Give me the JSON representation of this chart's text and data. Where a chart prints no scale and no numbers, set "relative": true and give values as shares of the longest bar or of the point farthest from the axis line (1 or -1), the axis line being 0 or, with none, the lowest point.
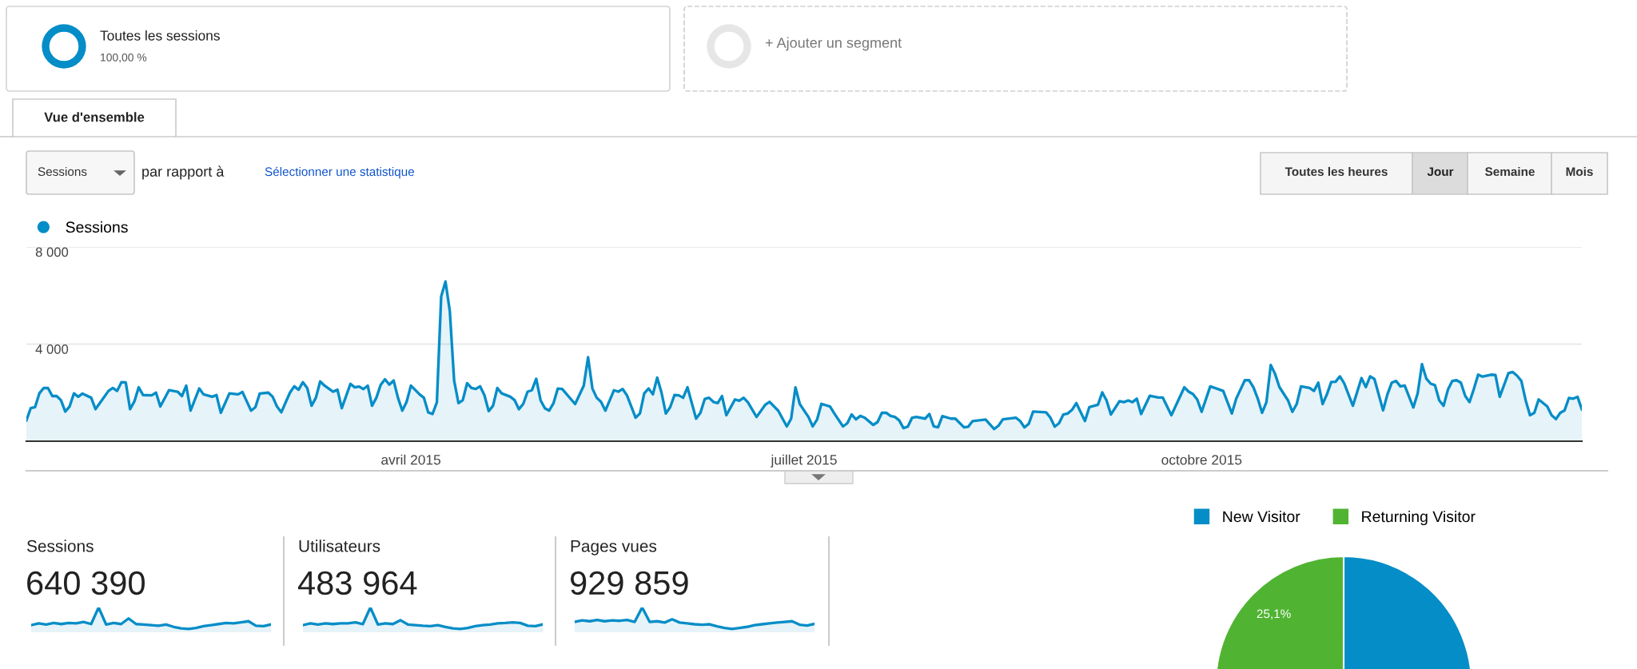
{
  "chart_data": [
    {
      "type": "other",
      "annotations": [
        "Toutes les sessions",
        "100,00 %",
        "+ Ajouter un segment"
      ]
    },
    {
      "type": "other",
      "annotations": [
        "Vue d'ensemble",
        "Sessions",
        "par rapport à",
        "Sélectionner une statistique",
        "Toutes les heures",
        "Jour",
        "Semaine",
        "Mois"
      ]
    },
    {
      "type": "area",
      "legend": "top left",
      "grid": "y",
      "xlim": [
        "2015-01-02",
        "2015-12-28"
      ],
      "xticks": [
        {
          "value": "2015-04-01",
          "label": "avril 2015"
        },
        {
          "value": "2015-07-01",
          "label": "juillet 2015"
        },
        {
          "value": "2015-10-01",
          "label": "octobre 2015"
        }
      ],
      "ylim": [
        0,
        8000
      ],
      "yticks": [
        {
          "value": 4000,
          "label": "4 000"
        },
        {
          "value": 8000,
          "label": "8 000"
        }
      ],
      "x": [
        "2015-01-02",
        "2015-01-03",
        "2015-01-04",
        "2015-01-05",
        "2015-01-06",
        "2015-01-07",
        "2015-01-08",
        "2015-01-09",
        "2015-01-10",
        "2015-01-11",
        "2015-01-12",
        "2015-01-13",
        "2015-01-14",
        "2015-01-15",
        "2015-01-17",
        "2015-01-18",
        "2015-01-19",
        "2015-01-21",
        "2015-01-22",
        "2015-01-23",
        "2015-01-24",
        "2015-01-25",
        "2015-01-26",
        "2015-01-27",
        "2015-01-28",
        "2015-01-29",
        "2015-01-31",
        "2015-02-01",
        "2015-02-02",
        "2015-02-04",
        "2015-02-06",
        "2015-02-07",
        "2015-02-08",
        "2015-02-09",
        "2015-02-11",
        "2015-02-12",
        "2015-02-14",
        "2015-02-15",
        "2015-02-16",
        "2015-02-18",
        "2015-02-20",
        "2015-02-21",
        "2015-02-23",
        "2015-02-24",
        "2015-02-25",
        "2015-02-27",
        "2015-02-28",
        "2015-03-01",
        "2015-03-02",
        "2015-03-04",
        "2015-03-05",
        "2015-03-06",
        "2015-03-07",
        "2015-03-08",
        "2015-03-09",
        "2015-03-10",
        "2015-03-11",
        "2015-03-12",
        "2015-03-14",
        "2015-03-15",
        "2015-03-16",
        "2015-03-18",
        "2015-03-19",
        "2015-03-20",
        "2015-03-21",
        "2015-03-22",
        "2015-03-23",
        "2015-03-24",
        "2015-03-25",
        "2015-03-26",
        "2015-03-27",
        "2015-03-28",
        "2015-03-29",
        "2015-03-30",
        "2015-03-31",
        "2015-04-01",
        "2015-04-03",
        "2015-04-04",
        "2015-04-05",
        "2015-04-06",
        "2015-04-07",
        "2015-04-08",
        "2015-04-09",
        "2015-04-10",
        "2015-04-11",
        "2015-04-12",
        "2015-04-13",
        "2015-04-14",
        "2015-04-15",
        "2015-04-16",
        "2015-04-17",
        "2015-04-18",
        "2015-04-19",
        "2015-04-20",
        "2015-04-21",
        "2015-04-22",
        "2015-04-24",
        "2015-04-25",
        "2015-04-26",
        "2015-04-27",
        "2015-04-28",
        "2015-04-29",
        "2015-04-30",
        "2015-05-01",
        "2015-05-02",
        "2015-05-03",
        "2015-05-04",
        "2015-05-05",
        "2015-05-06",
        "2015-05-09",
        "2015-05-11",
        "2015-05-12",
        "2015-05-13",
        "2015-05-14",
        "2015-05-15",
        "2015-05-16",
        "2015-05-18",
        "2015-05-19",
        "2015-05-20",
        "2015-05-21",
        "2015-05-23",
        "2015-05-24",
        "2015-05-25",
        "2015-05-26",
        "2015-05-27",
        "2015-05-28",
        "2015-05-29",
        "2015-05-30",
        "2015-05-31",
        "2015-06-01",
        "2015-06-02",
        "2015-06-03",
        "2015-06-04",
        "2015-06-06",
        "2015-06-07",
        "2015-06-08",
        "2015-06-09",
        "2015-06-10",
        "2015-06-11",
        "2015-06-12",
        "2015-06-13",
        "2015-06-15",
        "2015-06-16",
        "2015-06-17",
        "2015-06-18",
        "2015-06-20",
        "2015-06-22",
        "2015-06-23",
        "2015-06-25",
        "2015-06-27",
        "2015-06-28",
        "2015-06-29",
        "2015-06-30",
        "2015-07-02",
        "2015-07-03",
        "2015-07-04",
        "2015-07-05",
        "2015-07-07",
        "2015-07-08",
        "2015-07-10",
        "2015-07-11",
        "2015-07-12",
        "2015-07-13",
        "2015-07-14",
        "2015-07-15",
        "2015-07-17",
        "2015-07-18",
        "2015-07-19",
        "2015-07-20",
        "2015-07-21",
        "2015-07-22",
        "2015-07-23",
        "2015-07-24",
        "2015-07-25",
        "2015-07-26",
        "2015-07-27",
        "2015-07-29",
        "2015-07-30",
        "2015-07-31",
        "2015-08-01",
        "2015-08-02",
        "2015-08-04",
        "2015-08-05",
        "2015-08-07",
        "2015-08-08",
        "2015-08-09",
        "2015-08-12",
        "2015-08-14",
        "2015-08-15",
        "2015-08-16",
        "2015-08-19",
        "2015-08-20",
        "2015-08-21",
        "2015-08-22",
        "2015-08-23",
        "2015-08-26",
        "2015-08-27",
        "2015-08-28",
        "2015-08-29",
        "2015-08-30",
        "2015-08-31",
        "2015-09-01",
        "2015-09-02",
        "2015-09-04",
        "2015-09-05",
        "2015-09-07",
        "2015-09-08",
        "2015-09-09",
        "2015-09-10",
        "2015-09-12",
        "2015-09-13",
        "2015-09-14",
        "2015-09-15",
        "2015-09-16",
        "2015-09-17",
        "2015-09-19",
        "2015-09-21",
        "2015-09-22",
        "2015-09-24",
        "2015-09-27",
        "2015-09-28",
        "2015-09-29",
        "2015-09-30",
        "2015-10-01",
        "2015-10-03",
        "2015-10-06",
        "2015-10-08",
        "2015-10-09",
        "2015-10-11",
        "2015-10-12",
        "2015-10-13",
        "2015-10-14",
        "2015-10-15",
        "2015-10-16",
        "2015-10-17",
        "2015-10-18",
        "2015-10-19",
        "2015-10-21",
        "2015-10-22",
        "2015-10-23",
        "2015-10-24",
        "2015-10-26",
        "2015-10-27",
        "2015-10-28",
        "2015-10-29",
        "2015-10-30",
        "2015-10-31",
        "2015-11-01",
        "2015-11-02",
        "2015-11-03",
        "2015-11-05",
        "2015-11-07",
        "2015-11-08",
        "2015-11-09",
        "2015-11-10",
        "2015-11-12",
        "2015-11-13",
        "2015-11-14",
        "2015-11-15",
        "2015-11-16",
        "2015-11-17",
        "2015-11-19",
        "2015-11-20",
        "2015-11-21",
        "2015-11-22",
        "2015-11-23",
        "2015-11-24",
        "2015-11-25",
        "2015-11-26",
        "2015-11-27",
        "2015-11-28",
        "2015-11-29",
        "2015-11-30",
        "2015-12-01",
        "2015-12-02",
        "2015-12-03",
        "2015-12-04",
        "2015-12-05",
        "2015-12-07",
        "2015-12-08",
        "2015-12-09",
        "2015-12-11",
        "2015-12-12",
        "2015-12-13",
        "2015-12-14",
        "2015-12-15",
        "2015-12-16",
        "2015-12-17",
        "2015-12-18",
        "2015-12-20",
        "2015-12-21",
        "2015-12-22",
        "2015-12-23",
        "2015-12-24",
        "2015-12-25",
        "2015-12-26",
        "2015-12-27",
        "2015-12-28"
      ],
      "series": [
        {
          "name": "Sessions",
          "color": "#058dc7",
          "values": [
            860,
            1360,
            1400,
            1970,
            2190,
            2190,
            1860,
            1860,
            1690,
            1220,
            1430,
            1970,
            1830,
            1960,
            1790,
            1320,
            1570,
            2070,
            2190,
            2070,
            2430,
            2420,
            1320,
            1640,
            2220,
            1900,
            1890,
            2000,
            1430,
            2100,
            2040,
            1860,
            2290,
            1260,
            2170,
            1930,
            1830,
            1900,
            1170,
            1970,
            1930,
            2030,
            1260,
            1400,
            1960,
            2000,
            1830,
            1430,
            1190,
            2000,
            2260,
            2120,
            2430,
            2190,
            1460,
            1790,
            2460,
            2290,
            2040,
            2120,
            1360,
            2360,
            2220,
            2250,
            2150,
            2290,
            1460,
            1790,
            2320,
            2550,
            2330,
            2500,
            1790,
            1260,
            1620,
            2290,
            1930,
            1790,
            1190,
            1120,
            1600,
            5960,
            6580,
            5360,
            2500,
            1570,
            1690,
            2390,
            2190,
            2150,
            2260,
            1900,
            1240,
            1460,
            2190,
            1970,
            1830,
            1690,
            1320,
            1540,
            2040,
            2100,
            2570,
            1690,
            1360,
            1260,
            1570,
            2170,
            2150,
            1530,
            2290,
            3460,
            2170,
            1790,
            1620,
            1260,
            2100,
            2040,
            2150,
            1890,
            970,
            1140,
            1970,
            2170,
            1930,
            2620,
            2000,
            1140,
            1400,
            1900,
            1890,
            1790,
            2220,
            930,
            1170,
            1740,
            1790,
            1620,
            1570,
            1860,
            1070,
            1720,
            1670,
            1790,
            1600,
            1000,
            1500,
            1620,
            1260,
            610,
            930,
            2220,
            1530,
            1000,
            610,
            890,
            1540,
            1430,
            1140,
            610,
            740,
            1100,
            900,
            1040,
            970,
            670,
            790,
            1170,
            1170,
            1040,
            1000,
            860,
            540,
            600,
            970,
            1000,
            930,
            1120,
            610,
            570,
            1030,
            930,
            930,
            570,
            600,
            830,
            890,
            500,
            640,
            900,
            970,
            830,
            570,
            720,
            1220,
            1190,
            970,
            600,
            740,
            1100,
            1140,
            1290,
            1570,
            830,
            1400,
            1500,
            2010,
            1680,
            1100,
            1650,
            1610,
            1680,
            1610,
            1750,
            1120,
            1870,
            1800,
            1800,
            1070,
            2220,
            2040,
            1940,
            1710,
            1210,
            2260,
            2070,
            1140,
            1750,
            2510,
            2510,
            2220,
            1750,
            1170,
            1610,
            3140,
            2770,
            2230,
            1680,
            1210,
            1530,
            2260,
            2190,
            2070,
            2410,
            1530,
            1930,
            2440,
            2450,
            2670,
            2380,
            1460,
            2600,
            2230,
            2670,
            2560,
            1270,
            1930,
            2410,
            2480,
            2260,
            2290,
            1390,
            1970,
            3170,
            2580,
            2370,
            2310,
            1680,
            1460,
            2120,
            2480,
            2510,
            2410,
            1870,
            1610,
            2150,
            2740,
            2660,
            2740,
            2730,
            1830,
            2800,
            2850,
            2700,
            2480,
            1680,
            1070,
            1170,
            1720,
            1430,
            1070,
            910,
            1170,
            1270,
            1780,
            1750,
            1830,
            1310
          ]
        }
      ]
    },
    {
      "type": "area",
      "relative": true,
      "title": "Sessions",
      "subtitle": "640 390",
      "categories": [
        null,
        null,
        null,
        null,
        null,
        null,
        null,
        null,
        null,
        null,
        null,
        null,
        null,
        null,
        null,
        null,
        null,
        null,
        null,
        null,
        null,
        null,
        null,
        null,
        null,
        null,
        null,
        null,
        null,
        null,
        null,
        null,
        null
      ],
      "series": [
        {
          "color": "#058dc7",
          "values": [
            0.18,
            0.26,
            0.21,
            0.28,
            0.23,
            0.28,
            0.26,
            0.33,
            0.23,
            1,
            0.21,
            0.28,
            0.23,
            0.49,
            0.23,
            0.21,
            0.18,
            0.15,
            0.21,
            0.1,
            0.03,
            0,
            0.05,
            0.13,
            0.18,
            0.23,
            0.28,
            0.26,
            0.31,
            0.36,
            0.15,
            0.13,
            0.21
          ]
        }
      ]
    },
    {
      "type": "area",
      "relative": true,
      "title": "Utilisateurs",
      "subtitle": "483 964",
      "categories": [
        null,
        null,
        null,
        null,
        null,
        null,
        null,
        null,
        null,
        null,
        null,
        null,
        null,
        null,
        null,
        null,
        null,
        null,
        null,
        null,
        null,
        null,
        null,
        null,
        null,
        null,
        null,
        null,
        null,
        null,
        null,
        null,
        null
      ],
      "series": [
        {
          "color": "#058dc7",
          "values": [
            0.18,
            0.26,
            0.21,
            0.26,
            0.23,
            0.26,
            0.26,
            0.31,
            0.23,
            1,
            0.21,
            0.26,
            0.23,
            0.41,
            0.21,
            0.18,
            0.15,
            0.13,
            0.18,
            0.1,
            0.03,
            0,
            0.05,
            0.13,
            0.18,
            0.21,
            0.26,
            0.28,
            0.31,
            0.28,
            0.15,
            0.13,
            0.21
          ]
        }
      ]
    },
    {
      "type": "area",
      "relative": true,
      "title": "Pages vues",
      "subtitle": "929 859",
      "categories": [
        null,
        null,
        null,
        null,
        null,
        null,
        null,
        null,
        null,
        null,
        null,
        null,
        null,
        null,
        null,
        null,
        null,
        null,
        null,
        null,
        null,
        null,
        null,
        null,
        null,
        null,
        null,
        null,
        null,
        null,
        null,
        null,
        null
      ],
      "series": [
        {
          "color": "#058dc7",
          "values": [
            0.33,
            0.4,
            0.36,
            0.42,
            0.36,
            0.4,
            0.38,
            0.42,
            0.33,
            1,
            0.33,
            0.36,
            0.3,
            0.45,
            0.3,
            0.26,
            0.22,
            0.2,
            0.22,
            0.12,
            0.05,
            0,
            0.05,
            0.1,
            0.18,
            0.22,
            0.26,
            0.3,
            0.33,
            0.36,
            0.2,
            0.16,
            0.24
          ]
        }
      ]
    },
    {
      "type": "pie",
      "legend": "top",
      "categories": [
        "New Visitor",
        "Returning Visitor"
      ],
      "values": [
        74.9,
        25.1
      ],
      "colors": [
        "#058dc7",
        "#50b432"
      ],
      "value_labels": [
        null,
        "25,1%"
      ]
    }
  ]
}
